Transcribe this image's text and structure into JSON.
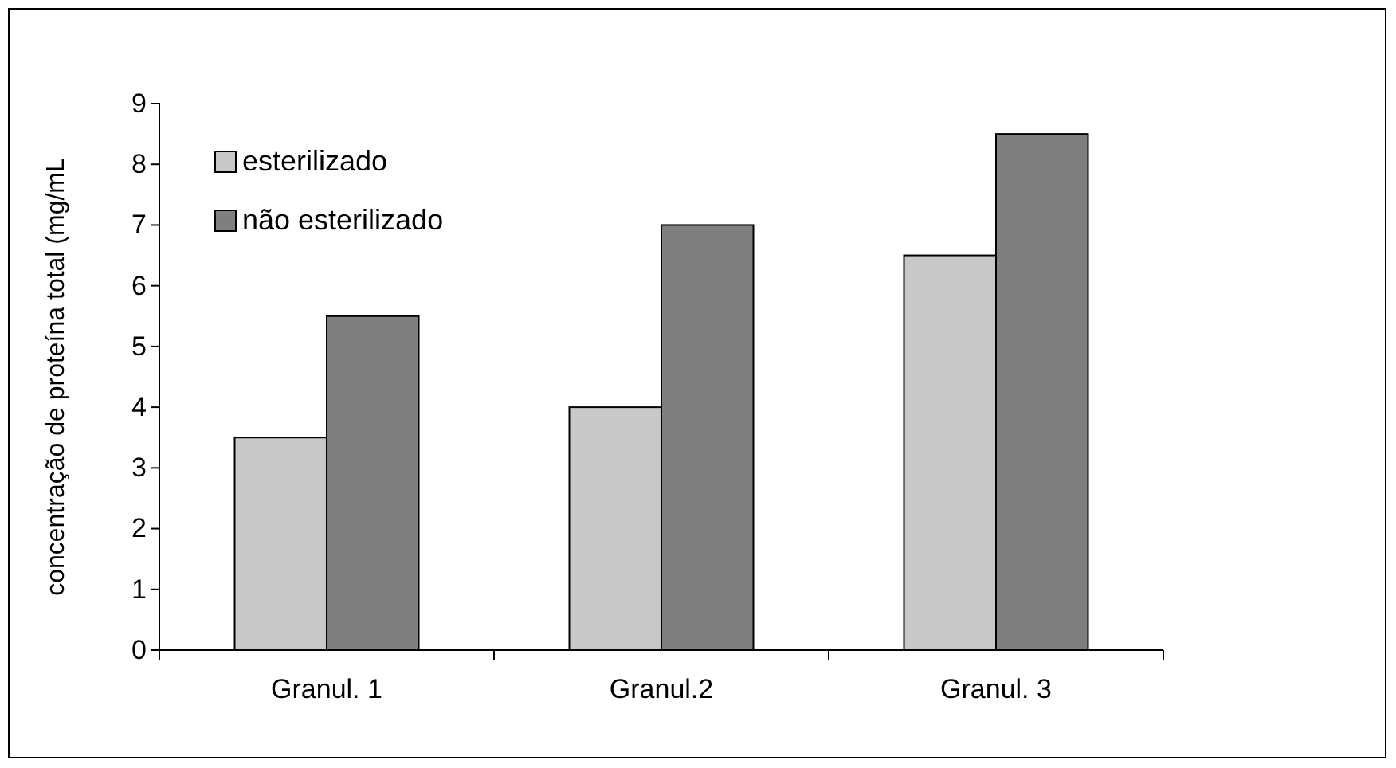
{
  "chart_data": {
    "type": "bar",
    "ylabel": "concentração de proteína total (mg/mL",
    "categories": [
      "Granul. 1",
      "Granul.2",
      "Granul. 3"
    ],
    "series": [
      {
        "name": "esterilizado",
        "color": "#c8c8c8",
        "values": [
          3.5,
          4,
          6.5
        ]
      },
      {
        "name": "não esterilizado",
        "color": "#7f7f7f",
        "values": [
          5.5,
          7,
          8.5
        ]
      }
    ],
    "ylim": [
      0,
      9
    ],
    "yticks": [
      0,
      1,
      2,
      3,
      4,
      5,
      6,
      7,
      8,
      9
    ],
    "grid": false,
    "legend": "top left"
  }
}
